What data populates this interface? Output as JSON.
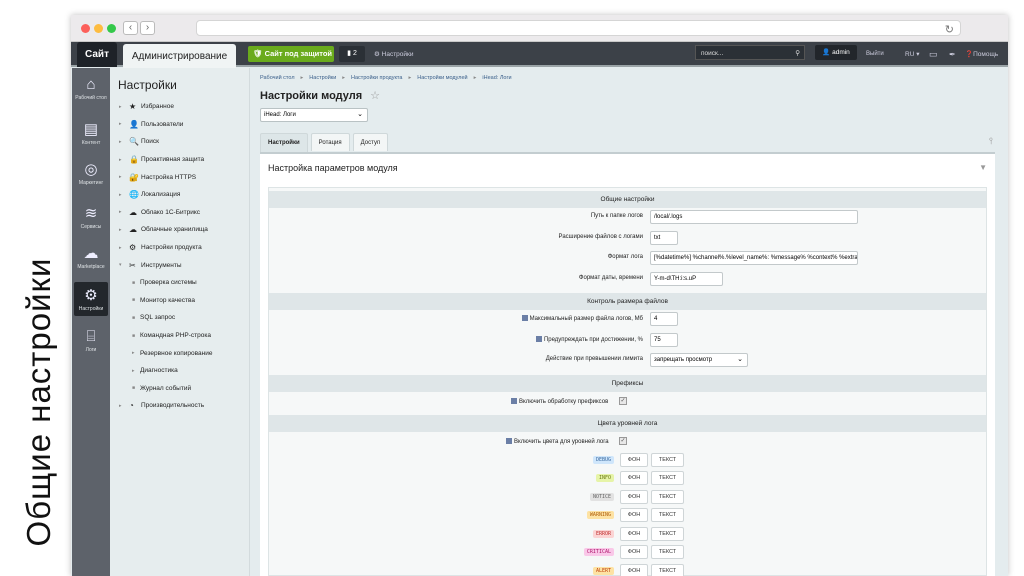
{
  "slide_title": "Общие настройки",
  "topbar": {
    "site": "Сайт",
    "admin": "Администрирование",
    "protected": "Сайт под защитой",
    "notifications": "2",
    "settings": "Настройки",
    "search_placeholder": "поиск...",
    "user": "admin",
    "logout": "Выйти",
    "lang": "RU",
    "help": "Помощь"
  },
  "iconbar": [
    {
      "label": "Рабочий стол",
      "icon": "home-icon"
    },
    {
      "label": "Контент",
      "icon": "document-icon"
    },
    {
      "label": "Маркетинг",
      "icon": "target-icon"
    },
    {
      "label": "Сервисы",
      "icon": "layers-icon"
    },
    {
      "label": "Marketplace",
      "icon": "cloud-download-icon"
    },
    {
      "label": "Настройки",
      "icon": "gear-icon"
    },
    {
      "label": "Логи",
      "icon": "logs-icon"
    }
  ],
  "menu": {
    "title": "Настройки",
    "items": [
      {
        "label": "Избранное",
        "icon": "★",
        "sub": false
      },
      {
        "label": "Пользователи",
        "icon": "👤",
        "sub": false
      },
      {
        "label": "Поиск",
        "icon": "🔍",
        "sub": false
      },
      {
        "label": "Проактивная защита",
        "icon": "🔒",
        "sub": false
      },
      {
        "label": "Настройка HTTPS",
        "icon": "🔐",
        "sub": false
      },
      {
        "label": "Локализация",
        "icon": "🌐",
        "sub": false
      },
      {
        "label": "Облако 1С-Битрикс",
        "icon": "☁",
        "sub": false
      },
      {
        "label": "Облачные хранилища",
        "icon": "☁",
        "sub": false
      },
      {
        "label": "Настройки продукта",
        "icon": "⚙",
        "sub": false
      },
      {
        "label": "Инструменты",
        "icon": "✂",
        "sub": false,
        "open": true
      },
      {
        "label": "Проверка системы",
        "sub": true
      },
      {
        "label": "Монитор качества",
        "sub": true
      },
      {
        "label": "SQL запрос",
        "sub": true
      },
      {
        "label": "Командная PHP-строка",
        "sub": true
      },
      {
        "label": "Резервное копирование",
        "sub": true,
        "arrow": true
      },
      {
        "label": "Диагностика",
        "sub": true,
        "arrow": true
      },
      {
        "label": "Журнал событий",
        "sub": true
      },
      {
        "label": "Производительность",
        "icon": "◔",
        "sub": false
      }
    ]
  },
  "breadcrumb": [
    "Рабочий стол",
    "Настройки",
    "Настройки продукта",
    "Настройки модулей",
    "iHead: Логи"
  ],
  "page_title": "Настройки модуля",
  "module_select": "iHead: Логи",
  "tabs": [
    "Настройки",
    "Ротация",
    "Доступ"
  ],
  "panel_title": "Настройка параметров модуля",
  "sections": {
    "general": "Общие настройки",
    "size": "Контроль размера файлов",
    "prefix": "Префиксы",
    "colors": "Цвета уровней лога"
  },
  "fields": {
    "path": {
      "label": "Путь к папке логов",
      "value": "/local/.logs"
    },
    "ext": {
      "label": "Расширение файлов с логами",
      "value": "txt"
    },
    "format": {
      "label": "Формат лога",
      "value": "[%datetime%] %channel%.%level_name%: %message% %context% %extra%"
    },
    "datefmt": {
      "label": "Формат даты, времени",
      "value": "Y-m-d\\TH:i:s.uP"
    },
    "maxsize": {
      "label": "Максимальный размер файла логов, Мб",
      "value": "4"
    },
    "warn": {
      "label": "Предупреждать при достижении, %",
      "value": "75"
    },
    "action": {
      "label": "Действие при превышении лимита",
      "value": "запрещать просмотр"
    },
    "prefix_enable": {
      "label": "Включить обработку префиксов",
      "checked": true
    },
    "colors_enable": {
      "label": "Включить цвета для уровней лога",
      "checked": true
    }
  },
  "levels": [
    {
      "name": "DEBUG",
      "bg": "#cfe6fb",
      "fg": "#3a6aa0"
    },
    {
      "name": "INFO",
      "bg": "#e6f4a8",
      "fg": "#6b7a10"
    },
    {
      "name": "NOTICE",
      "bg": "#e2e2e2",
      "fg": "#666"
    },
    {
      "name": "WARNING",
      "bg": "#fde2a3",
      "fg": "#b0600c"
    },
    {
      "name": "ERROR",
      "bg": "#fbd4d4",
      "fg": "#c03030"
    },
    {
      "name": "CRITICAL",
      "bg": "#f9c8e8",
      "fg": "#b0186e"
    },
    {
      "name": "ALERT",
      "bg": "#fde2a3",
      "fg": "#c0420c"
    }
  ],
  "color_buttons": {
    "bg": "ФОН",
    "text": "ТЕКСТ"
  }
}
